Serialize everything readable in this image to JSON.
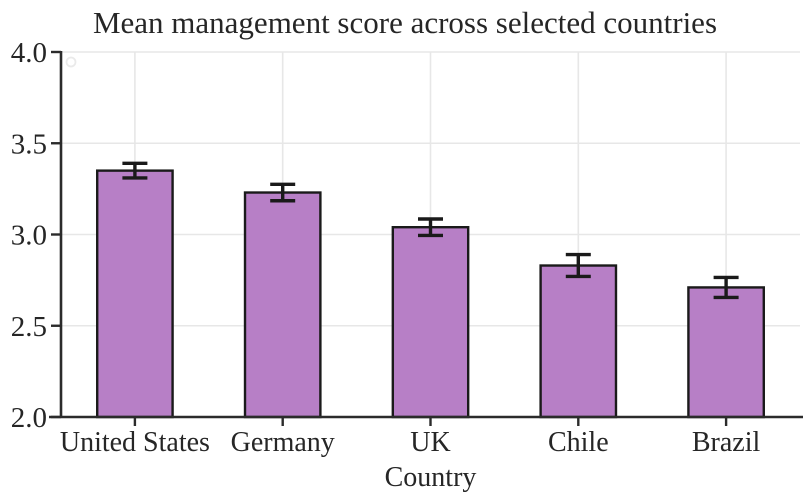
{
  "chart_data": {
    "type": "bar",
    "title": "Mean management score across selected countries",
    "xlabel": "Country",
    "ylabel": "",
    "categories": [
      "United States",
      "Germany",
      "UK",
      "Chile",
      "Brazil"
    ],
    "values": [
      3.35,
      3.23,
      3.04,
      2.83,
      2.71
    ],
    "error_bars": [
      0.04,
      0.045,
      0.045,
      0.06,
      0.055
    ],
    "ylim": [
      2.0,
      4.0
    ],
    "yticks": [
      2.0,
      2.5,
      3.0,
      3.5,
      4.0
    ],
    "ytick_labels": [
      "2.0",
      "2.5",
      "3.0",
      "3.5",
      "4.0"
    ],
    "grid": "both",
    "legend": "none",
    "bar_width_ratio": 0.51,
    "colors": {
      "bar_fill": "#b77fc6",
      "bar_edge": "#1a1a1a",
      "error_bar": "#1a1a1a",
      "grid": "#e7e7e7",
      "axis": "#2b2b2b",
      "text": "#262626",
      "background": "#ffffff",
      "artifact_ring": "#eaeaea"
    }
  }
}
